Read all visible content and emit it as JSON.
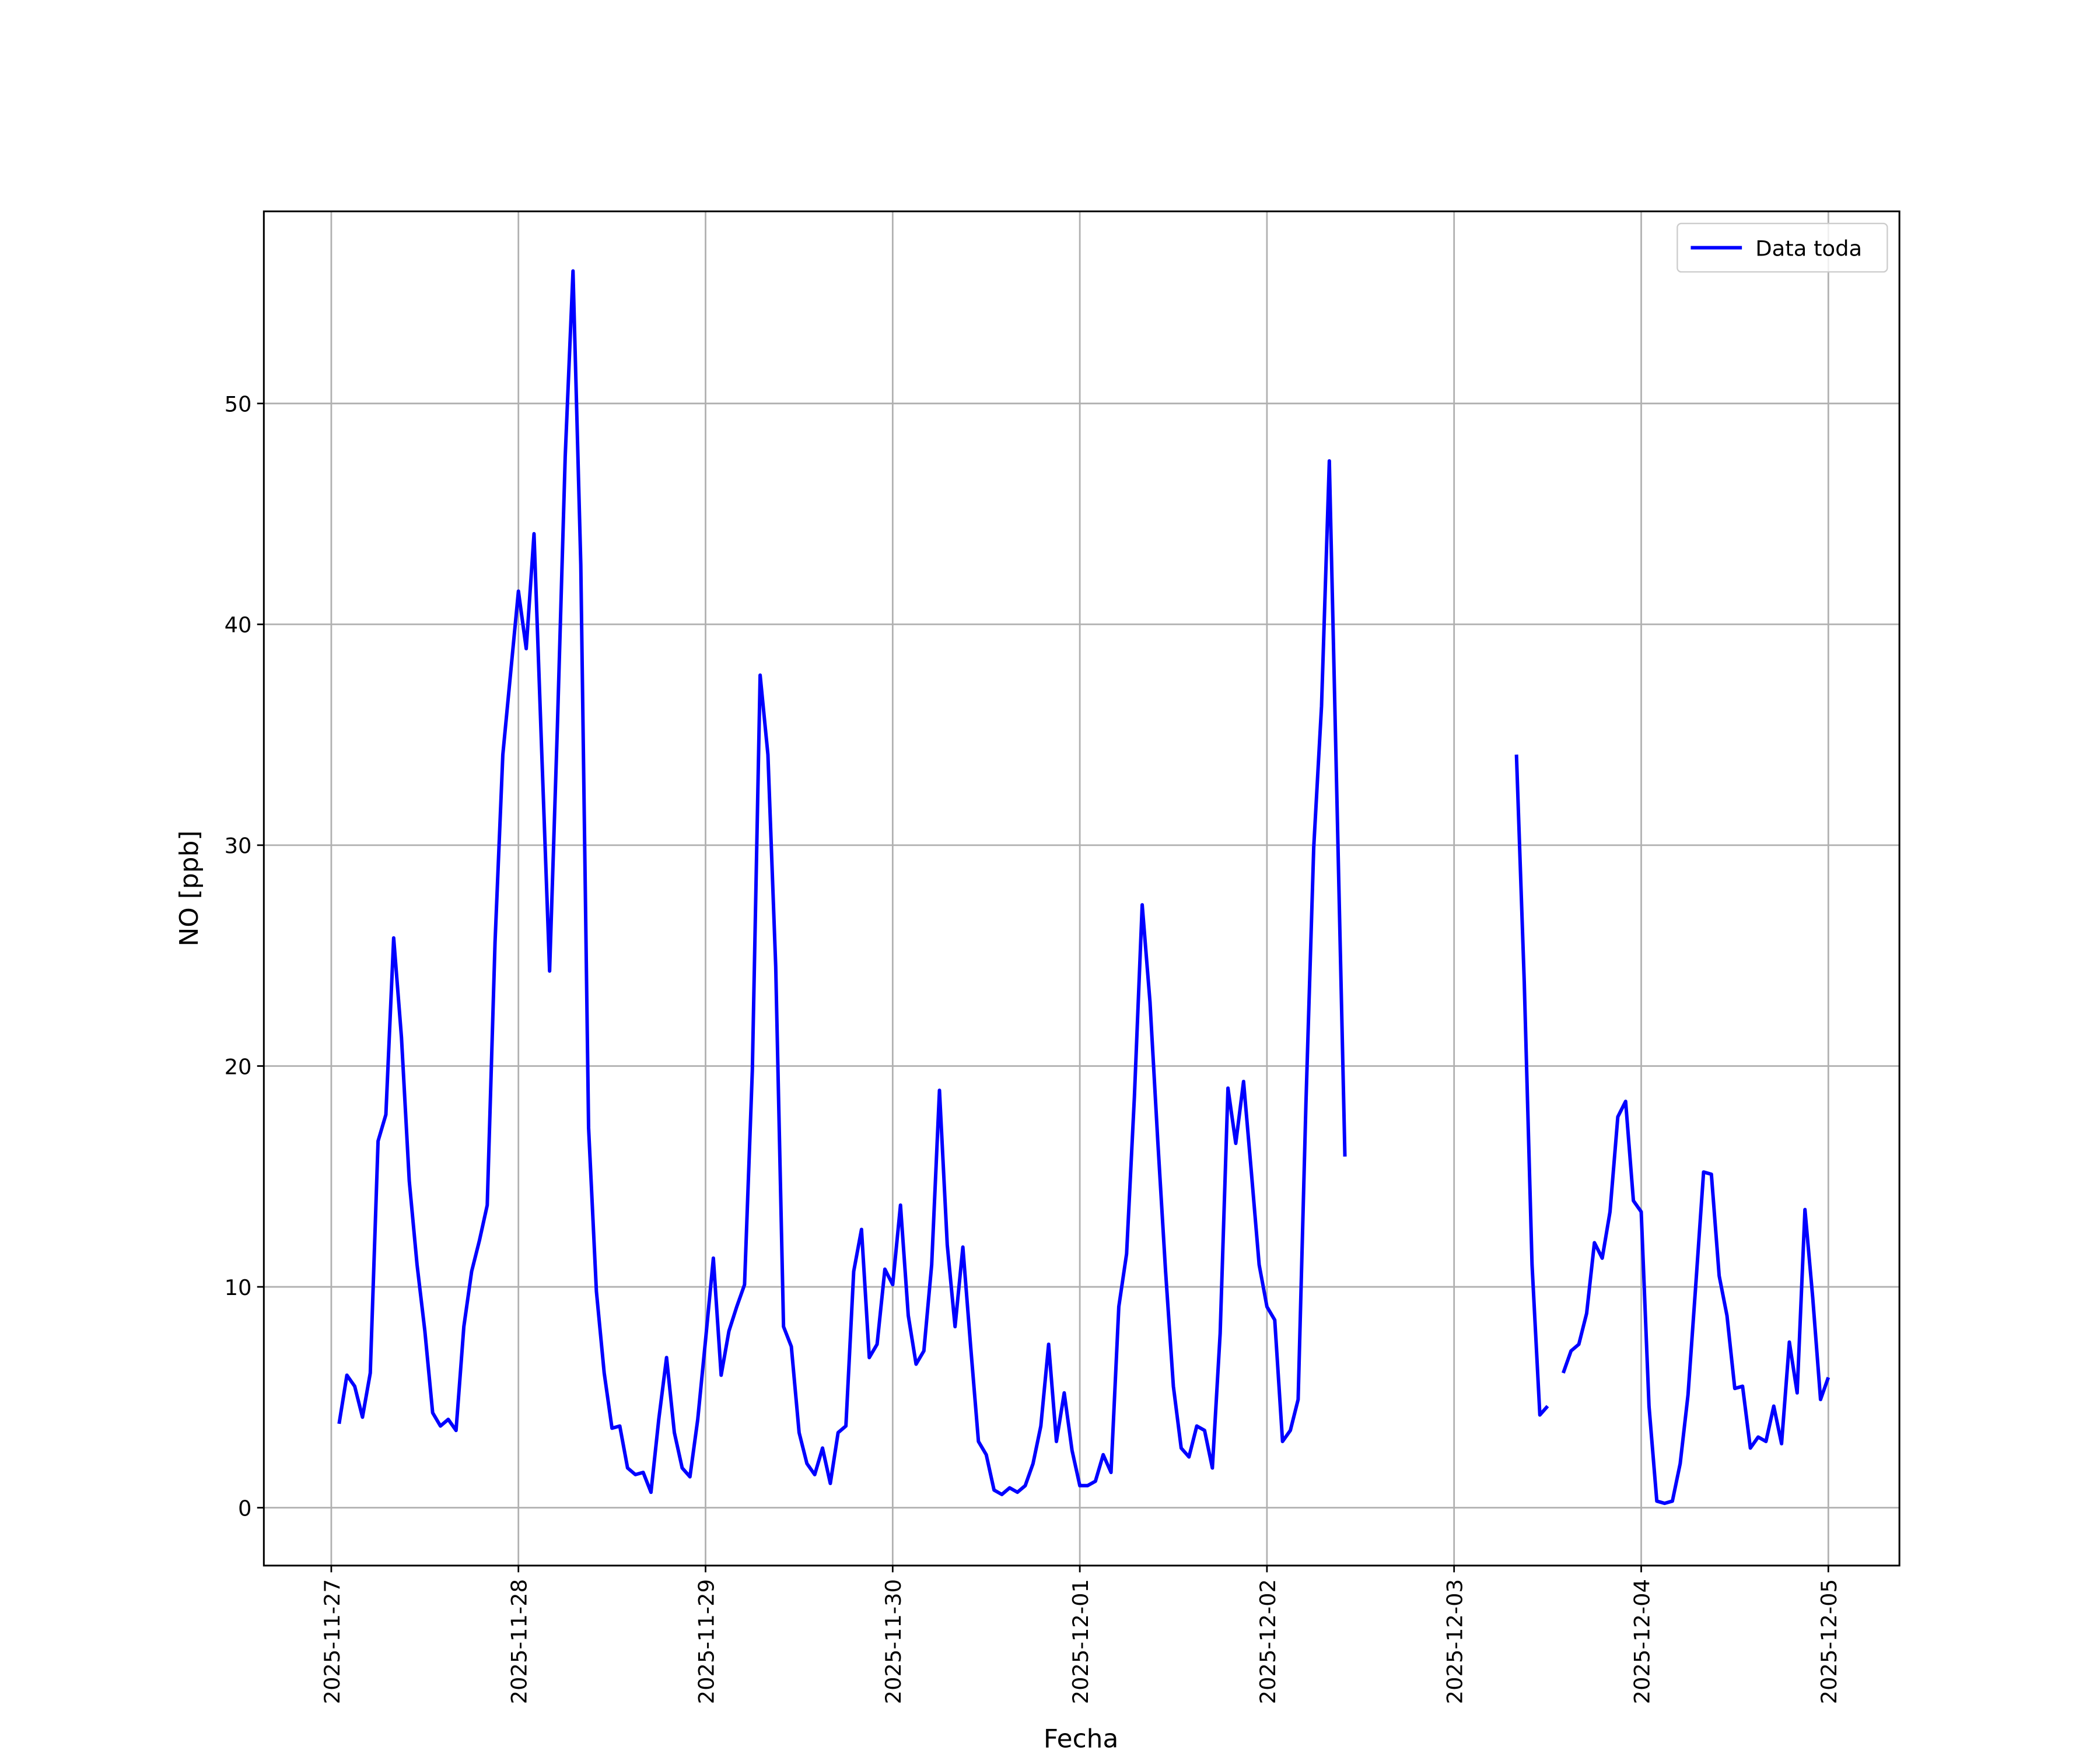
{
  "chart_data": {
    "type": "line",
    "xlabel": "Fecha",
    "ylabel": "NO [ppb]",
    "x": [
      "2025-11-27 01:00",
      "2025-11-27 02:00",
      "2025-11-27 03:00",
      "2025-11-27 04:00",
      "2025-11-27 05:00",
      "2025-11-27 06:00",
      "2025-11-27 07:00",
      "2025-11-27 08:00",
      "2025-11-27 09:00",
      "2025-11-27 10:00",
      "2025-11-27 11:00",
      "2025-11-27 12:00",
      "2025-11-27 13:00",
      "2025-11-27 14:00",
      "2025-11-27 15:00",
      "2025-11-27 16:00",
      "2025-11-27 17:00",
      "2025-11-27 18:00",
      "2025-11-27 19:00",
      "2025-11-27 20:00",
      "2025-11-27 21:00",
      "2025-11-27 22:00",
      "2025-11-27 23:00",
      "2025-11-28 00:00",
      "2025-11-28 01:00",
      "2025-11-28 02:00",
      "2025-11-28 03:00",
      "2025-11-28 04:00",
      "2025-11-28 05:00",
      "2025-11-28 06:00",
      "2025-11-28 07:00",
      "2025-11-28 08:00",
      "2025-11-28 09:00",
      "2025-11-28 10:00",
      "2025-11-28 11:00",
      "2025-11-28 12:00",
      "2025-11-28 13:00",
      "2025-11-28 14:00",
      "2025-11-28 15:00",
      "2025-11-28 16:00",
      "2025-11-28 17:00",
      "2025-11-28 18:00",
      "2025-11-28 19:00",
      "2025-11-28 20:00",
      "2025-11-28 21:00",
      "2025-11-28 22:00",
      "2025-11-28 23:00",
      "2025-11-29 00:00",
      "2025-11-29 01:00",
      "2025-11-29 02:00",
      "2025-11-29 03:00",
      "2025-11-29 04:00",
      "2025-11-29 05:00",
      "2025-11-29 06:00",
      "2025-11-29 07:00",
      "2025-11-29 08:00",
      "2025-11-29 09:00",
      "2025-11-29 10:00",
      "2025-11-29 11:00",
      "2025-11-29 12:00",
      "2025-11-29 13:00",
      "2025-11-29 14:00",
      "2025-11-29 15:00",
      "2025-11-29 16:00",
      "2025-11-29 17:00",
      "2025-11-29 18:00",
      "2025-11-29 19:00",
      "2025-11-29 20:00",
      "2025-11-29 21:00",
      "2025-11-29 22:00",
      "2025-11-29 23:00",
      "2025-11-30 00:00",
      "2025-11-30 01:00",
      "2025-11-30 02:00",
      "2025-11-30 03:00",
      "2025-11-30 04:00",
      "2025-11-30 05:00",
      "2025-11-30 06:00",
      "2025-11-30 07:00",
      "2025-11-30 08:00",
      "2025-11-30 09:00",
      "2025-11-30 10:00",
      "2025-11-30 11:00",
      "2025-11-30 12:00",
      "2025-11-30 13:00",
      "2025-11-30 14:00",
      "2025-11-30 15:00",
      "2025-11-30 16:00",
      "2025-11-30 17:00",
      "2025-11-30 18:00",
      "2025-11-30 19:00",
      "2025-11-30 20:00",
      "2025-11-30 21:00",
      "2025-11-30 22:00",
      "2025-11-30 23:00",
      "2025-12-01 00:00",
      "2025-12-01 01:00",
      "2025-12-01 02:00",
      "2025-12-01 03:00",
      "2025-12-01 04:00",
      "2025-12-01 05:00",
      "2025-12-01 06:00",
      "2025-12-01 07:00",
      "2025-12-01 08:00",
      "2025-12-01 09:00",
      "2025-12-01 10:00",
      "2025-12-01 11:00",
      "2025-12-01 12:00",
      "2025-12-01 13:00",
      "2025-12-01 14:00",
      "2025-12-01 15:00",
      "2025-12-01 16:00",
      "2025-12-01 17:00",
      "2025-12-01 18:00",
      "2025-12-01 19:00",
      "2025-12-01 20:00",
      "2025-12-01 21:00",
      "2025-12-01 22:00",
      "2025-12-01 23:00",
      "2025-12-02 00:00",
      "2025-12-02 01:00",
      "2025-12-02 02:00",
      "2025-12-02 03:00",
      "2025-12-02 04:00",
      "2025-12-02 05:00",
      "2025-12-02 06:00",
      "2025-12-02 07:00",
      "2025-12-02 08:00",
      "2025-12-02 09:00",
      "2025-12-02 10:00",
      "2025-12-02 11:00",
      "2025-12-03 08:00",
      "2025-12-03 09:00",
      "2025-12-03 10:00",
      "2025-12-03 11:00",
      "2025-12-03 12:00",
      "2025-12-03 13:00",
      "2025-12-03 14:00",
      "2025-12-03 15:00",
      "2025-12-03 16:00",
      "2025-12-03 17:00",
      "2025-12-03 18:00",
      "2025-12-03 19:00",
      "2025-12-03 20:00",
      "2025-12-03 21:00",
      "2025-12-03 22:00",
      "2025-12-03 23:00",
      "2025-12-04 00:00",
      "2025-12-04 01:00",
      "2025-12-04 02:00",
      "2025-12-04 03:00",
      "2025-12-04 04:00",
      "2025-12-04 05:00",
      "2025-12-04 06:00",
      "2025-12-04 07:00",
      "2025-12-04 08:00",
      "2025-12-04 09:00",
      "2025-12-04 10:00",
      "2025-12-04 11:00",
      "2025-12-04 12:00",
      "2025-12-04 13:00",
      "2025-12-04 14:00",
      "2025-12-04 15:00",
      "2025-12-04 16:00",
      "2025-12-04 17:00",
      "2025-12-04 18:00",
      "2025-12-04 19:00",
      "2025-12-04 20:00",
      "2025-12-04 21:00",
      "2025-12-04 22:00",
      "2025-12-04 23:00",
      "2025-12-05 00:00"
    ],
    "series": [
      {
        "name": "Data toda",
        "color": "#0000ff",
        "values": [
          3.8,
          6.0,
          5.5,
          4.1,
          6.1,
          16.6,
          17.8,
          25.8,
          21.3,
          14.8,
          11.0,
          8.0,
          4.3,
          3.7,
          4.0,
          3.5,
          8.2,
          10.7,
          12.1,
          13.7,
          25.6,
          34.1,
          37.8,
          41.5,
          38.9,
          44.1,
          34.1,
          24.3,
          35.4,
          47.6,
          56.0,
          42.7,
          17.2,
          9.8,
          6.1,
          3.6,
          3.7,
          1.8,
          1.5,
          1.6,
          0.7,
          4.0,
          6.8,
          3.4,
          1.8,
          1.4,
          4.0,
          7.6,
          11.3,
          6.0,
          8.0,
          9.1,
          10.1,
          19.8,
          37.7,
          34.1,
          24.5,
          8.2,
          7.3,
          3.4,
          2.0,
          1.5,
          2.7,
          1.1,
          3.4,
          3.7,
          10.7,
          12.6,
          6.8,
          7.4,
          10.8,
          10.1,
          13.7,
          8.7,
          6.5,
          7.1,
          11.0,
          18.9,
          11.9,
          8.2,
          11.8,
          7.3,
          3.0,
          2.4,
          0.8,
          0.6,
          0.9,
          0.7,
          1.0,
          2.0,
          3.7,
          7.4,
          3.0,
          5.2,
          2.6,
          1.0,
          1.0,
          1.2,
          2.4,
          1.6,
          9.1,
          11.5,
          18.6,
          27.3,
          22.9,
          16.6,
          10.7,
          5.5,
          2.7,
          2.3,
          3.7,
          3.5,
          1.8,
          7.9,
          19.0,
          16.5,
          19.3,
          15.2,
          11.0,
          9.1,
          8.5,
          3.0,
          3.5,
          4.9,
          18.3,
          29.9,
          36.3,
          47.4,
          31.7,
          15.9,
          null,
          34.1,
          23.8,
          11.0,
          4.2,
          4.6,
          null,
          6.1,
          7.1,
          7.4,
          8.8,
          12.0,
          11.3,
          13.4,
          17.7,
          18.4,
          13.9,
          13.4,
          4.6,
          0.3,
          0.2,
          0.3,
          2.0,
          5.1,
          10.1,
          15.2,
          15.1,
          10.5,
          8.7,
          5.4,
          5.5,
          2.7,
          3.2,
          3.0,
          4.6,
          2.9,
          7.5,
          5.2,
          13.5,
          9.5,
          4.9,
          5.9
        ]
      }
    ],
    "xlim": [
      "2025-11-26 15:21",
      "2025-12-05 09:07"
    ],
    "xticks": [
      "2025-11-27",
      "2025-11-28",
      "2025-11-29",
      "2025-11-30",
      "2025-12-01",
      "2025-12-02",
      "2025-12-03",
      "2025-12-04",
      "2025-12-05"
    ],
    "ylim": [
      -2.62,
      58.7
    ],
    "yticks": [
      0,
      10,
      20,
      30,
      40,
      50
    ],
    "grid": true,
    "legend": "upper right"
  }
}
